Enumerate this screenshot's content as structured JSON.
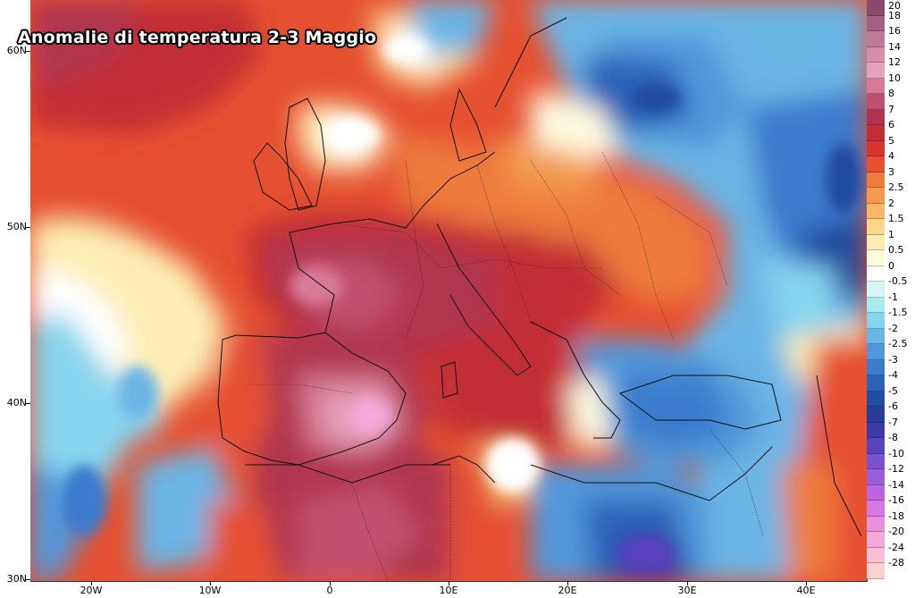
{
  "map": {
    "title": "Anomalie di temperatura 2-3 Maggio",
    "latitude_labels": [
      "60N",
      "50N",
      "40N",
      "30N"
    ],
    "longitude_labels": [
      "20W",
      "10W",
      "0",
      "10E",
      "20E",
      "30E",
      "40E"
    ]
  },
  "legend": {
    "items": [
      {
        "label": "20",
        "color": "#8c4a6a"
      },
      {
        "label": "18",
        "color": "#a5607f"
      },
      {
        "label": "16",
        "color": "#bf7a98"
      },
      {
        "label": "14",
        "color": "#d58fab"
      },
      {
        "label": "12",
        "color": "#e7a2bb"
      },
      {
        "label": "10",
        "color": "#d87a97"
      },
      {
        "label": "8",
        "color": "#c24f6f"
      },
      {
        "label": "7",
        "color": "#b0344f"
      },
      {
        "label": "6",
        "color": "#c22e35"
      },
      {
        "label": "5",
        "color": "#d8332e"
      },
      {
        "label": "4",
        "color": "#e55130"
      },
      {
        "label": "3",
        "color": "#ee7a3c"
      },
      {
        "label": "2.5",
        "color": "#f39a4f"
      },
      {
        "label": "2",
        "color": "#f7b766"
      },
      {
        "label": "1.5",
        "color": "#fad689"
      },
      {
        "label": "1",
        "color": "#fdedb4"
      },
      {
        "label": "0.5",
        "color": "#fefade"
      },
      {
        "label": "0",
        "color": "#ffffff"
      },
      {
        "label": "-0.5",
        "color": "#d6f6f6"
      },
      {
        "label": "-1",
        "color": "#a6ecef"
      },
      {
        "label": "-1.5",
        "color": "#86d5ee"
      },
      {
        "label": "-2",
        "color": "#6ab6e6"
      },
      {
        "label": "-2.5",
        "color": "#4f97da"
      },
      {
        "label": "-3",
        "color": "#3a7ccc"
      },
      {
        "label": "-4",
        "color": "#2c62b7"
      },
      {
        "label": "-5",
        "color": "#224c9f"
      },
      {
        "label": "-6",
        "color": "#263c96"
      },
      {
        "label": "-7",
        "color": "#3d39a6"
      },
      {
        "label": "-8",
        "color": "#5a43bf"
      },
      {
        "label": "-10",
        "color": "#7a52cf"
      },
      {
        "label": "-12",
        "color": "#9a5ddb"
      },
      {
        "label": "-14",
        "color": "#bb66e1"
      },
      {
        "label": "-16",
        "color": "#d677e2"
      },
      {
        "label": "-18",
        "color": "#e88fde"
      },
      {
        "label": "-20",
        "color": "#f2a9da"
      },
      {
        "label": "-24",
        "color": "#f7c0d4"
      },
      {
        "label": "-28",
        "color": "#fbd2d0"
      }
    ]
  }
}
